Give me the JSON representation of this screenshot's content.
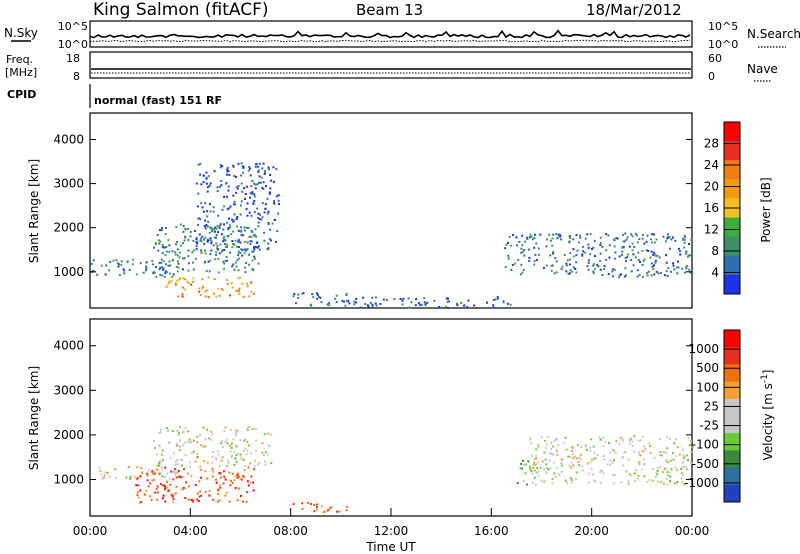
{
  "header": {
    "station": "King Salmon (fitACF)",
    "beam": "Beam 13",
    "date": "18/Mar/2012"
  },
  "top_panels": {
    "nsky_label": "N.Sky",
    "nsearch_label": "N.Search",
    "noise_top_tick": "10^5",
    "noise_bottom_tick": "10^0",
    "freq_label_1": "Freq.",
    "freq_label_2": "[MHz]",
    "freq_top_tick": "18",
    "freq_bottom_tick": "8",
    "nave_label": "Nave",
    "nave_top_tick": "60",
    "nave_bottom_tick": "0",
    "cpid_label": "CPID",
    "cpid_value": "normal (fast) 151 RF"
  },
  "chart_data": [
    {
      "type": "heatmap",
      "id": "power",
      "ylabel": "Slant Range [km]",
      "ylim": [
        180,
        4600
      ],
      "yticks": [
        1000,
        2000,
        3000,
        4000
      ],
      "xlim": [
        0,
        24
      ],
      "colorbar_label": "Power [dB]",
      "colorbar_ticks": [
        "4",
        "8",
        "12",
        "16",
        "20",
        "24",
        "28"
      ],
      "colorbar_colors": [
        "#1a33e6",
        "#2e6fb0",
        "#3f8f6a",
        "#3cae3c",
        "#f0c020",
        "#f39c12",
        "#f07d10",
        "#e83020",
        "#ff0000"
      ],
      "scatter_regions": [
        {
          "t": [
            0,
            3.5
          ],
          "r": [
            900,
            1300
          ],
          "level": 0.2
        },
        {
          "t": [
            2.5,
            6.8
          ],
          "r": [
            1000,
            2100
          ],
          "level": 0.25
        },
        {
          "t": [
            3.0,
            6.5
          ],
          "r": [
            450,
            900
          ],
          "level": 0.65
        },
        {
          "t": [
            4.2,
            7.5
          ],
          "r": [
            1500,
            3500
          ],
          "level": 0.12
        },
        {
          "t": [
            8.0,
            10.3
          ],
          "r": [
            250,
            550
          ],
          "level": 0.15
        },
        {
          "t": [
            16.5,
            24
          ],
          "r": [
            900,
            1900
          ],
          "level": 0.2
        },
        {
          "t": [
            10,
            17
          ],
          "r": [
            200,
            450
          ],
          "level": 0.1
        }
      ]
    },
    {
      "type": "heatmap",
      "id": "velocity",
      "ylabel": "Slant Range [km]",
      "ylim": [
        180,
        4600
      ],
      "yticks": [
        1000,
        2000,
        3000,
        4000
      ],
      "xlim": [
        0,
        24
      ],
      "xlabel": "Time UT",
      "xticks": [
        "00:00",
        "04:00",
        "08:00",
        "12:00",
        "16:00",
        "20:00",
        "00:00"
      ],
      "colorbar_label": "Velocity [m s^-1]",
      "colorbar_ticks": [
        "1000",
        "500",
        "100",
        "25",
        "-25",
        "-100",
        "-500",
        "-1000"
      ],
      "colorbar_colors": [
        "#2040c0",
        "#3070a0",
        "#3a8a3a",
        "#66cc33",
        "#c8c8c8",
        "#c8c8c8",
        "#f5a030",
        "#f07010",
        "#e83020",
        "#ff0000"
      ],
      "scatter_regions": [
        {
          "t": [
            0,
            3.5
          ],
          "r": [
            1000,
            1300
          ],
          "level": 0.5
        },
        {
          "t": [
            2.5,
            7.2
          ],
          "r": [
            1300,
            2200
          ],
          "level": 0.5
        },
        {
          "t": [
            1.8,
            6.5
          ],
          "r": [
            500,
            1300
          ],
          "level": 0.8
        },
        {
          "t": [
            8.0,
            10.3
          ],
          "r": [
            280,
            500
          ],
          "level": 0.78
        },
        {
          "t": [
            17.0,
            17.6
          ],
          "r": [
            900,
            1500
          ],
          "level": 0.3
        },
        {
          "t": [
            17.5,
            24
          ],
          "r": [
            900,
            2000
          ],
          "level": 0.5
        }
      ]
    }
  ]
}
